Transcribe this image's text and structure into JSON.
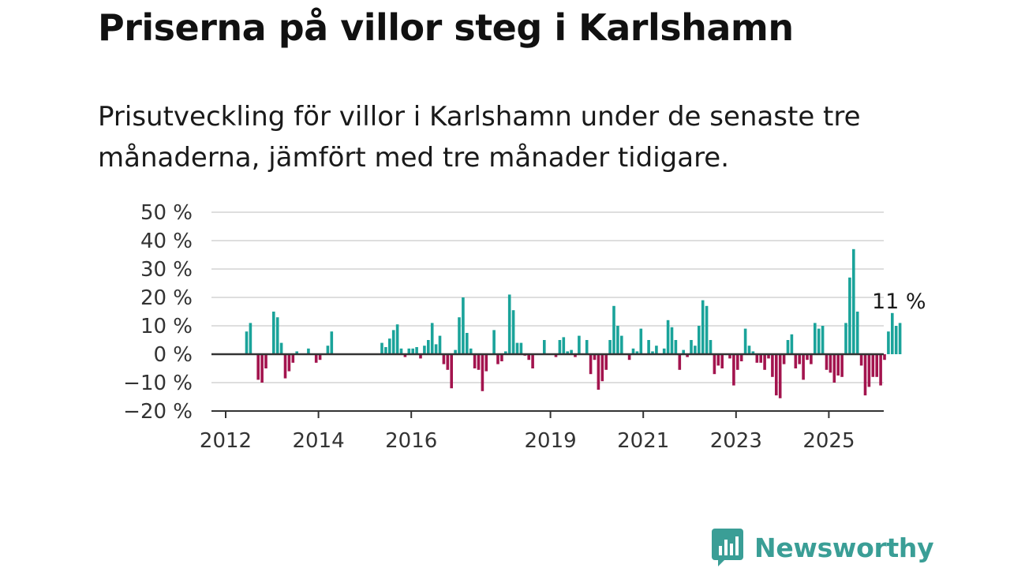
{
  "title": "Priserna på villor steg i Karlshamn",
  "subtitle": "Prisutveckling för villor i Karlshamn under de senaste tre månaderna, jämfört med tre månader tidigare.",
  "brand": {
    "name": "Newsworthy",
    "color": "#3a9e96"
  },
  "colors": {
    "positive": "#1aa39a",
    "negative": "#a3144e",
    "grid": "#dedede",
    "axis": "#333333"
  },
  "chart_data": {
    "type": "bar",
    "title": "",
    "xlabel": "",
    "ylabel": "",
    "y_unit": "%",
    "ylim": [
      -20,
      50
    ],
    "y_ticks": [
      50,
      40,
      30,
      20,
      10,
      0,
      -10,
      -20
    ],
    "y_tick_labels": [
      "50 %",
      "40 %",
      "30 %",
      "20 %",
      "10 %",
      "0 %",
      "−10 %",
      "−20 %"
    ],
    "x_ticks": [
      {
        "label": "2012",
        "date": "2012-01"
      },
      {
        "label": "2014",
        "date": "2014-01"
      },
      {
        "label": "2016",
        "date": "2016-01"
      },
      {
        "label": "2019",
        "date": "2019-01"
      },
      {
        "label": "2021",
        "date": "2021-01"
      },
      {
        "label": "2023",
        "date": "2023-01"
      },
      {
        "label": "2025",
        "date": "2025-01"
      }
    ],
    "grid": true,
    "last_value_label": "11 %",
    "start_date": "2012-06",
    "frequency": "monthly",
    "values": [
      8,
      11,
      null,
      -9,
      -10,
      -5,
      null,
      15,
      13,
      4,
      -8.5,
      -6,
      -3,
      1,
      null,
      null,
      2,
      null,
      -3,
      -2,
      null,
      3,
      8,
      null,
      null,
      null,
      null,
      null,
      null,
      null,
      null,
      null,
      null,
      null,
      null,
      4,
      2.5,
      5.5,
      8.5,
      10.5,
      2,
      -1,
      2,
      2,
      2.5,
      -1.5,
      3,
      5,
      11,
      3.5,
      6.5,
      -3.5,
      -5.5,
      -12,
      1.5,
      13,
      20,
      7.5,
      2,
      -5,
      -5.5,
      -13,
      -6,
      null,
      8.5,
      -3.5,
      -2.5,
      1,
      21,
      15.5,
      4,
      4,
      -0.5,
      -2,
      -5,
      null,
      null,
      5,
      null,
      null,
      -1,
      5,
      6,
      1,
      1.5,
      -1,
      6.5,
      null,
      5,
      -7,
      -2,
      -12.5,
      -9.5,
      -5.5,
      5,
      17,
      10,
      6.5,
      null,
      -2,
      2,
      1,
      9,
      null,
      5,
      1,
      3,
      null,
      2,
      12,
      9.5,
      5,
      -5.5,
      1.5,
      -1,
      5,
      3,
      10,
      19,
      17,
      5,
      -7,
      -4,
      -5,
      null,
      -1.5,
      -11,
      -5.5,
      -2.5,
      9,
      3,
      1,
      -3,
      -3,
      -5.5,
      -1.5,
      -8,
      -14.5,
      -15.5,
      -3.5,
      5,
      7,
      -5,
      -3.5,
      -9,
      -2,
      -3.5,
      11,
      9,
      10,
      -5.5,
      -6.5,
      -10,
      -7.5,
      -8,
      11,
      27,
      37,
      15,
      -4,
      -14.5,
      -11.5,
      -8,
      -8,
      -11,
      -2,
      8,
      14.5,
      10,
      11
    ]
  }
}
